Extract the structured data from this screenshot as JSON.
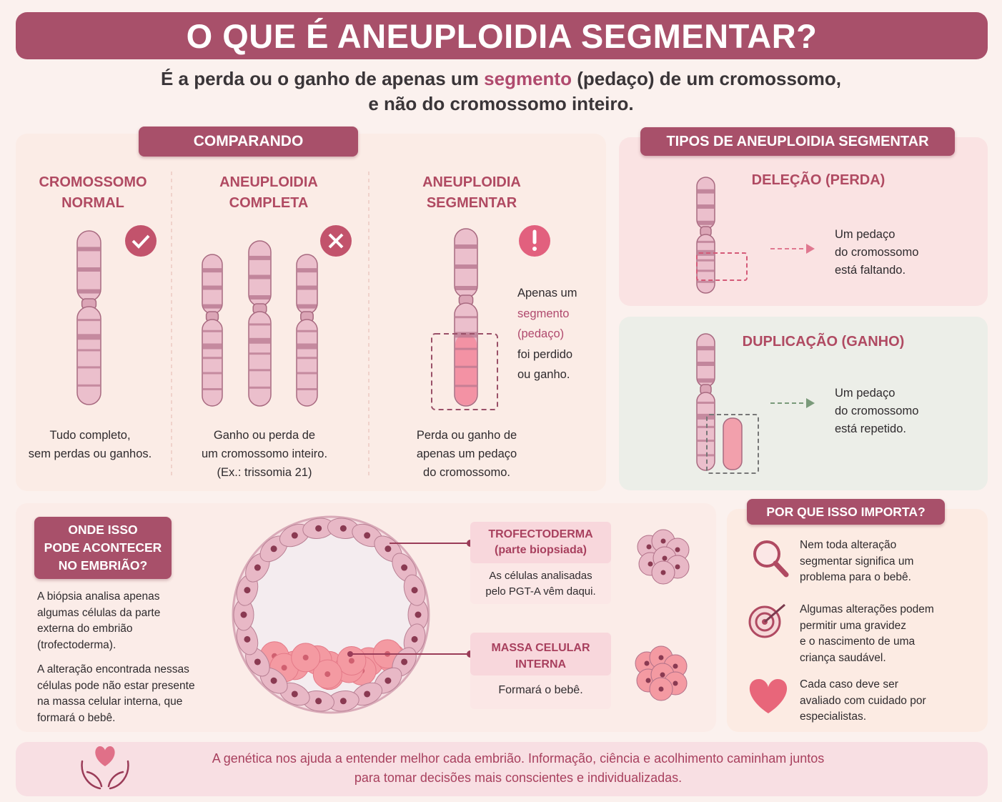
{
  "header": {
    "title": "O QUE É ANEUPLOIDIA SEGMENTAR?",
    "subtitle": {
      "before": "É a perda ou o ganho de apenas um ",
      "highlight": "segmento",
      "after": " (pedaço) de um cromossomo,",
      "line2": "e não do cromossomo inteiro."
    }
  },
  "compare": {
    "title": "COMPARANDO",
    "columns": [
      {
        "heading": [
          "CROMOSSOMO",
          "NORMAL"
        ],
        "caption": [
          "Tudo completo,",
          "sem perdas ou ganhos."
        ]
      },
      {
        "heading": [
          "ANEUPLOIDIA",
          "COMPLETA"
        ],
        "caption": [
          "Ganho ou perda de",
          "um cromossomo inteiro.",
          "(Ex.: trissomia 21)"
        ]
      },
      {
        "heading": [
          "ANEUPLOIDIA",
          "SEGMENTAR"
        ],
        "caption": [
          "Perda ou ganho de",
          "apenas um pedaço",
          "do cromossomo."
        ],
        "note": [
          "Apenas um",
          "segmento",
          "(pedaço)",
          "foi perdido",
          "ou ganho."
        ]
      }
    ]
  },
  "types": {
    "title": "TIPOS DE ANEUPLOIDIA SEGMENTAR",
    "items": [
      {
        "heading": "DELEÇÃO (PERDA)",
        "text": [
          "Um pedaço",
          "do cromossomo",
          "está faltando."
        ]
      },
      {
        "heading": "DUPLICAÇÃO (GANHO)",
        "text": [
          "Um pedaço",
          "do cromossomo",
          "está repetido."
        ]
      }
    ]
  },
  "embryo": {
    "title": [
      "ONDE ISSO",
      "PODE ACONTECER",
      "NO EMBRIÃO?"
    ],
    "paragraphs": [
      [
        "A biópsia analisa apenas",
        "algumas células da parte",
        "externa do embrião",
        "(trofectoderma)."
      ],
      [
        "A alteração encontrada nessas",
        "células pode não estar presente",
        "na massa celular interna, que",
        "formará o bebê."
      ]
    ],
    "labels": [
      {
        "title": [
          "TROFECTODERMA",
          "(parte biopsiada)"
        ],
        "text": [
          "As células analisadas",
          "pelo PGT-A vêm daqui."
        ]
      },
      {
        "title": [
          "MASSA CELULAR",
          "INTERNA"
        ],
        "text": [
          "Formará o bebê."
        ]
      }
    ]
  },
  "importance": {
    "title": "POR QUE ISSO IMPORTA?",
    "items": [
      [
        "Nem toda alteração",
        "segmentar significa um",
        "problema para o bebê."
      ],
      [
        "Algumas alterações podem",
        "permitir uma gravidez",
        "e o nascimento de uma",
        "criança saudável."
      ],
      [
        "Cada caso deve ser",
        "avaliado com cuidado por",
        "especialistas."
      ]
    ]
  },
  "footer": [
    "A genética nos ajuda a entender melhor cada embrião. Informação, ciência e acolhimento caminham juntos",
    "para tomar decisões mais conscientes e individualizadas."
  ]
}
